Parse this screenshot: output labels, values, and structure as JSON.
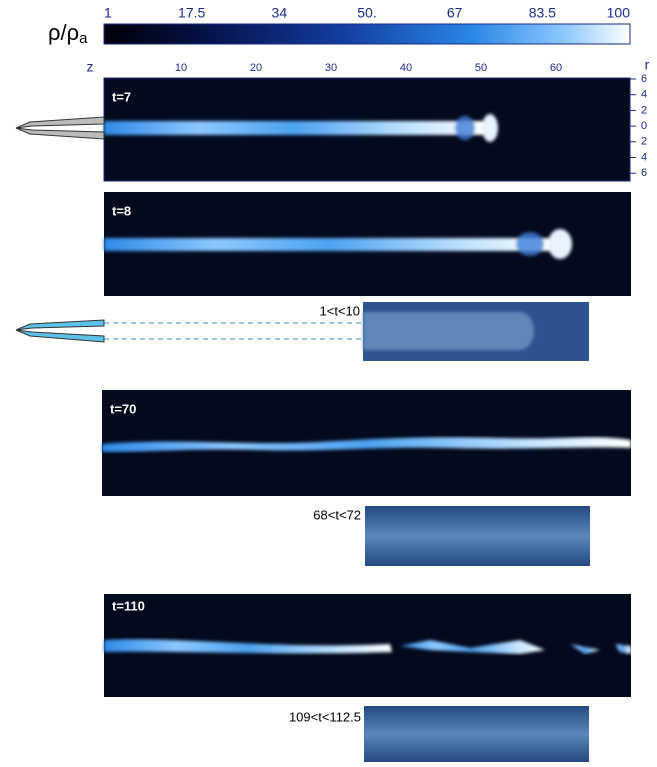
{
  "colorbar": {
    "label": "ρ/ρ",
    "label_sub": "a",
    "ticks": [
      "1",
      "17.5",
      "34",
      "50.",
      "67",
      "83.5",
      "100"
    ]
  },
  "axes": {
    "z_label": "z",
    "z_ticks": [
      "10",
      "20",
      "30",
      "40",
      "50",
      "60"
    ],
    "r_label": "r",
    "r_ticks": [
      "6",
      "4",
      "2",
      "0",
      "2",
      "4",
      "6"
    ]
  },
  "panels": [
    {
      "label": "t=7"
    },
    {
      "label": "t=8"
    },
    {
      "label": "t=70"
    },
    {
      "label": "t=110"
    }
  ],
  "experiments": [
    {
      "label": "1<t<10"
    },
    {
      "label": "68<t<72"
    },
    {
      "label": "109<t<112.5"
    }
  ]
}
